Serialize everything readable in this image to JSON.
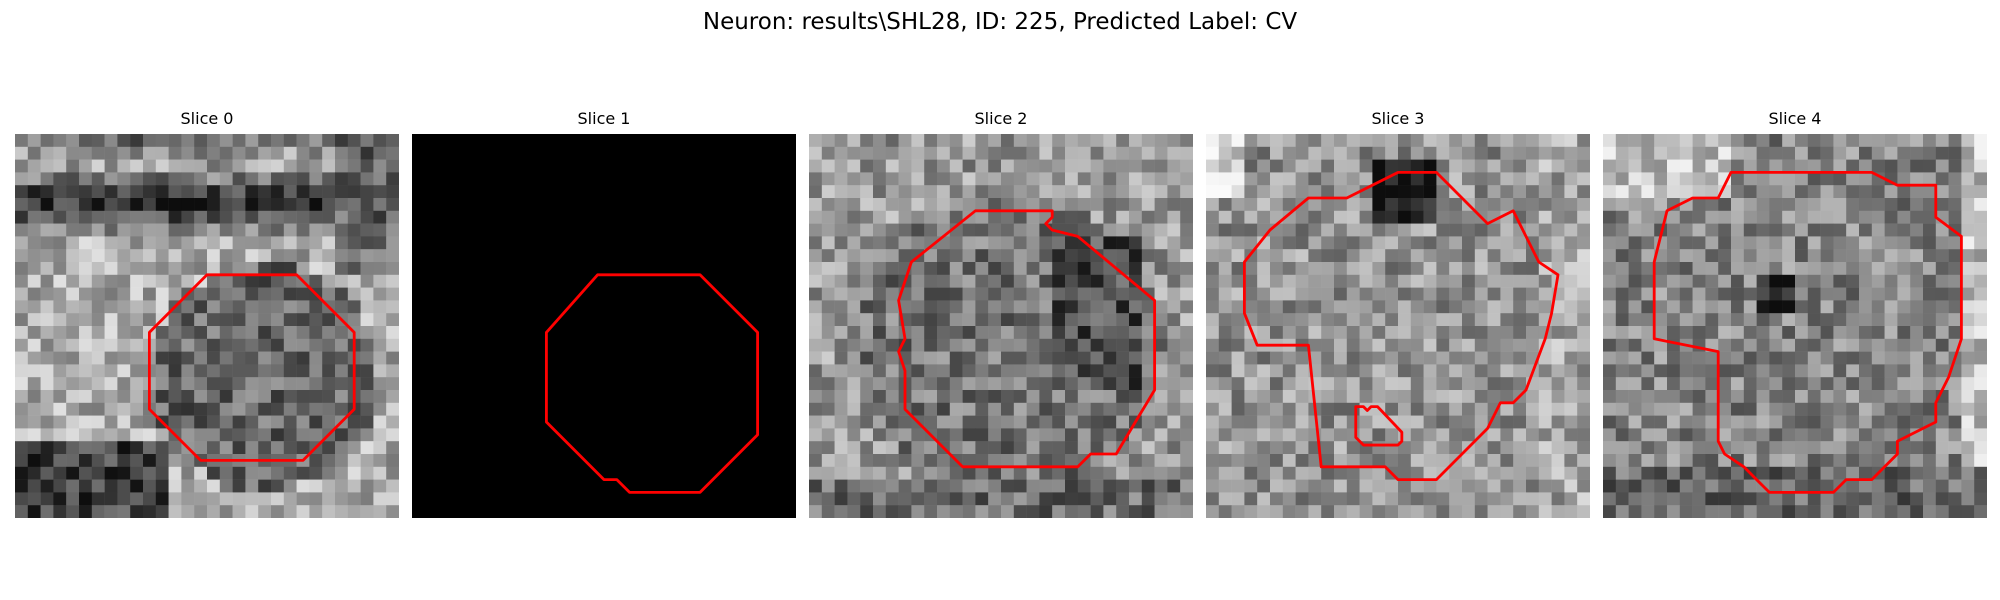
{
  "figure": {
    "title": "Neuron: results\\SHL28, ID: 225, Predicted Label: CV"
  },
  "panels": [
    {
      "title": "Slice 0",
      "image_kind": "grayscale-micrograph",
      "contour_color": "#ff0000"
    },
    {
      "title": "Slice 1",
      "image_kind": "black-empty",
      "contour_color": "#ff0000"
    },
    {
      "title": "Slice 2",
      "image_kind": "grayscale-micrograph",
      "contour_color": "#ff0000"
    },
    {
      "title": "Slice 3",
      "image_kind": "grayscale-micrograph",
      "contour_color": "#ff0000"
    },
    {
      "title": "Slice 4",
      "image_kind": "grayscale-micrograph",
      "contour_color": "#ff0000"
    }
  ]
}
